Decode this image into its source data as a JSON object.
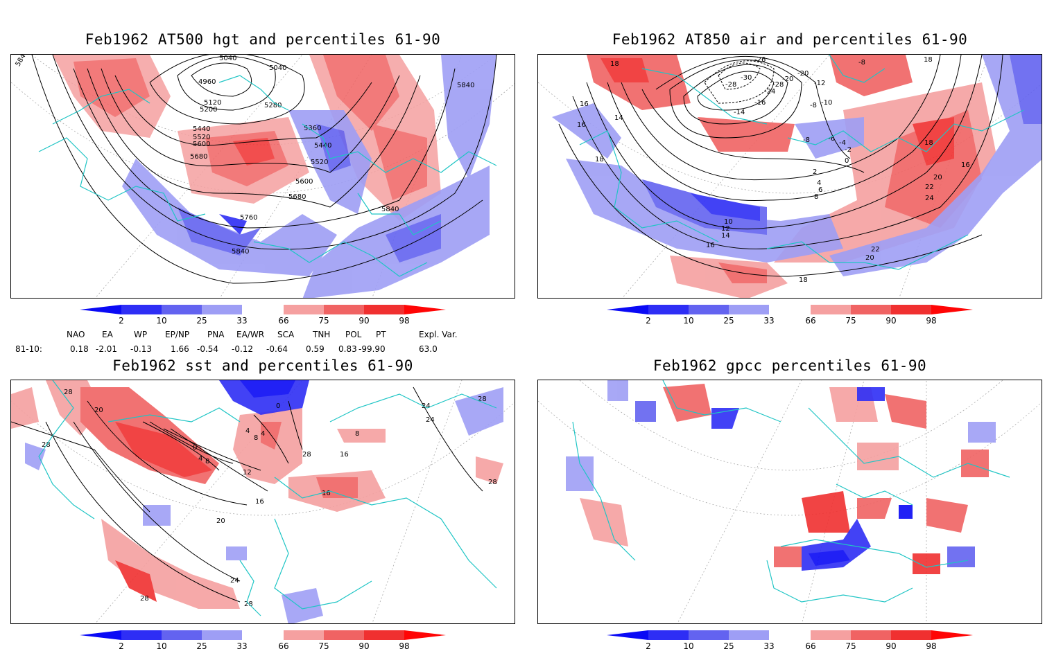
{
  "panels": [
    {
      "title": "Feb1962 AT500 hgt and percentiles 61-90",
      "contour_labels": [
        "5040",
        "5040",
        "4960",
        "5120",
        "5200",
        "5280",
        "5360",
        "5440",
        "5520",
        "5600",
        "5680",
        "5440",
        "5520",
        "5600",
        "5680",
        "5760",
        "5840",
        "5840",
        "5840",
        "5840"
      ]
    },
    {
      "title": "Feb1962 AT850 air and percentiles 61-90",
      "contour_labels": [
        "18",
        "-26",
        "-30",
        "-28",
        "-28",
        "-24",
        "-20",
        "-20",
        "-12",
        "-8",
        "-16",
        "-14",
        "-10",
        "-8",
        "-6",
        "-4",
        "-2",
        "0",
        "16",
        "16",
        "14",
        "18",
        "2",
        "4",
        "6",
        "8",
        "10",
        "12",
        "14",
        "16",
        "18",
        "20",
        "22",
        "24",
        "16",
        "22",
        "20",
        "18",
        "-8",
        "18"
      ]
    },
    {
      "title": "Feb1962 sst and percentiles 61-90",
      "contour_labels": [
        "28",
        "20",
        "28",
        "0",
        "4",
        "8",
        "12",
        "16",
        "20",
        "24",
        "28",
        "28",
        "24",
        "28",
        "0",
        "4",
        "8",
        "4",
        "16",
        "28",
        "8",
        "24",
        "16",
        "28"
      ]
    },
    {
      "title": "Feb1962 gpcc percentiles 61-90",
      "contour_labels": []
    }
  ],
  "colorbar": {
    "labels": [
      "2",
      "10",
      "25",
      "33",
      "66",
      "75",
      "90",
      "98"
    ],
    "colors": [
      "#0a0af5",
      "#2e2ef5",
      "#6363f0",
      "#9e9ef5",
      "#ffffff",
      "#f5a0a0",
      "#f06363",
      "#f03030",
      "#ff0505"
    ]
  },
  "indices": {
    "header": [
      "NAO",
      "EA",
      "WP",
      "EP/NP",
      "PNA",
      "EA/WR",
      "SCA",
      "TNH",
      "POL",
      "PT",
      "Expl. Var."
    ],
    "row_label": "81-10:",
    "values": [
      "0.18",
      "-2.01",
      "-0.13",
      "1.66",
      "-0.54",
      "-0.12",
      "-0.64",
      "0.59",
      "0.83",
      "-99.90",
      "63.0"
    ]
  },
  "colors": {
    "coast": "#1fc5c5",
    "contour": "#000000",
    "grid": "#999999"
  }
}
